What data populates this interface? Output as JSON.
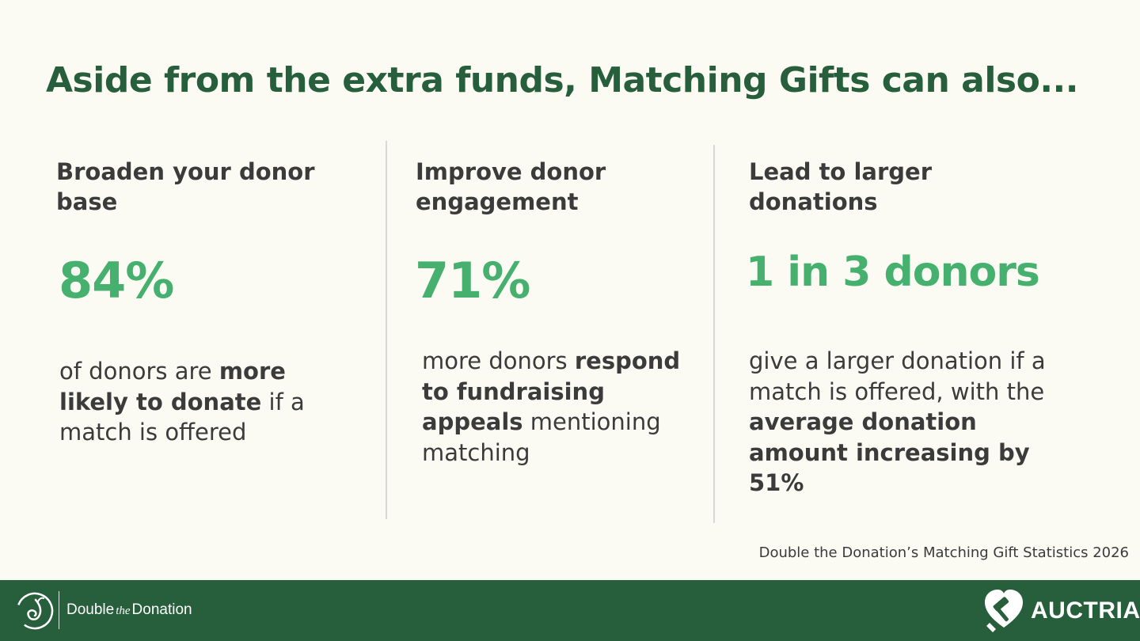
{
  "title": "Aside from the extra funds, Matching Gifts can also...",
  "columns": [
    {
      "heading_line1": "Broaden your donor",
      "heading_line2": "base",
      "stat": "84%",
      "desc": [
        {
          "text": "of donors are ",
          "bold": false
        },
        {
          "text": "more likely to donate",
          "bold": true
        },
        {
          "text": " if a match is offered",
          "bold": false
        }
      ]
    },
    {
      "heading_line1": "Improve donor",
      "heading_line2": "engagement",
      "stat": "71%",
      "desc": [
        {
          "text": "more donors ",
          "bold": false
        },
        {
          "text": "respond to fundraising appeals",
          "bold": true
        },
        {
          "text": " mentioning matching",
          "bold": false
        }
      ]
    },
    {
      "heading_line1": "Lead to larger",
      "heading_line2": "donations",
      "stat": "1 in 3 donors",
      "desc": [
        {
          "text": "give a larger donation if a match is offered, with the ",
          "bold": false
        },
        {
          "text": "average donation amount increasing by 51%",
          "bold": true
        }
      ]
    }
  ],
  "source": "Double the Donation’s Matching Gift Statistics 2026",
  "footer": {
    "left_logo_icon": "double-the-donation-logo-icon",
    "left_brand_part1": "Double",
    "left_brand_part2": "the",
    "left_brand_part3": "Donation",
    "right_logo_icon": "auctria-heart-gavel-logo-icon",
    "right_brand": "AUCTRIA"
  },
  "colors": {
    "background": "#fbfbf4",
    "title_green": "#275e3c",
    "stat_green": "#46b06f",
    "text_dark": "#3b3b3b",
    "footer_green": "#275e3c"
  }
}
